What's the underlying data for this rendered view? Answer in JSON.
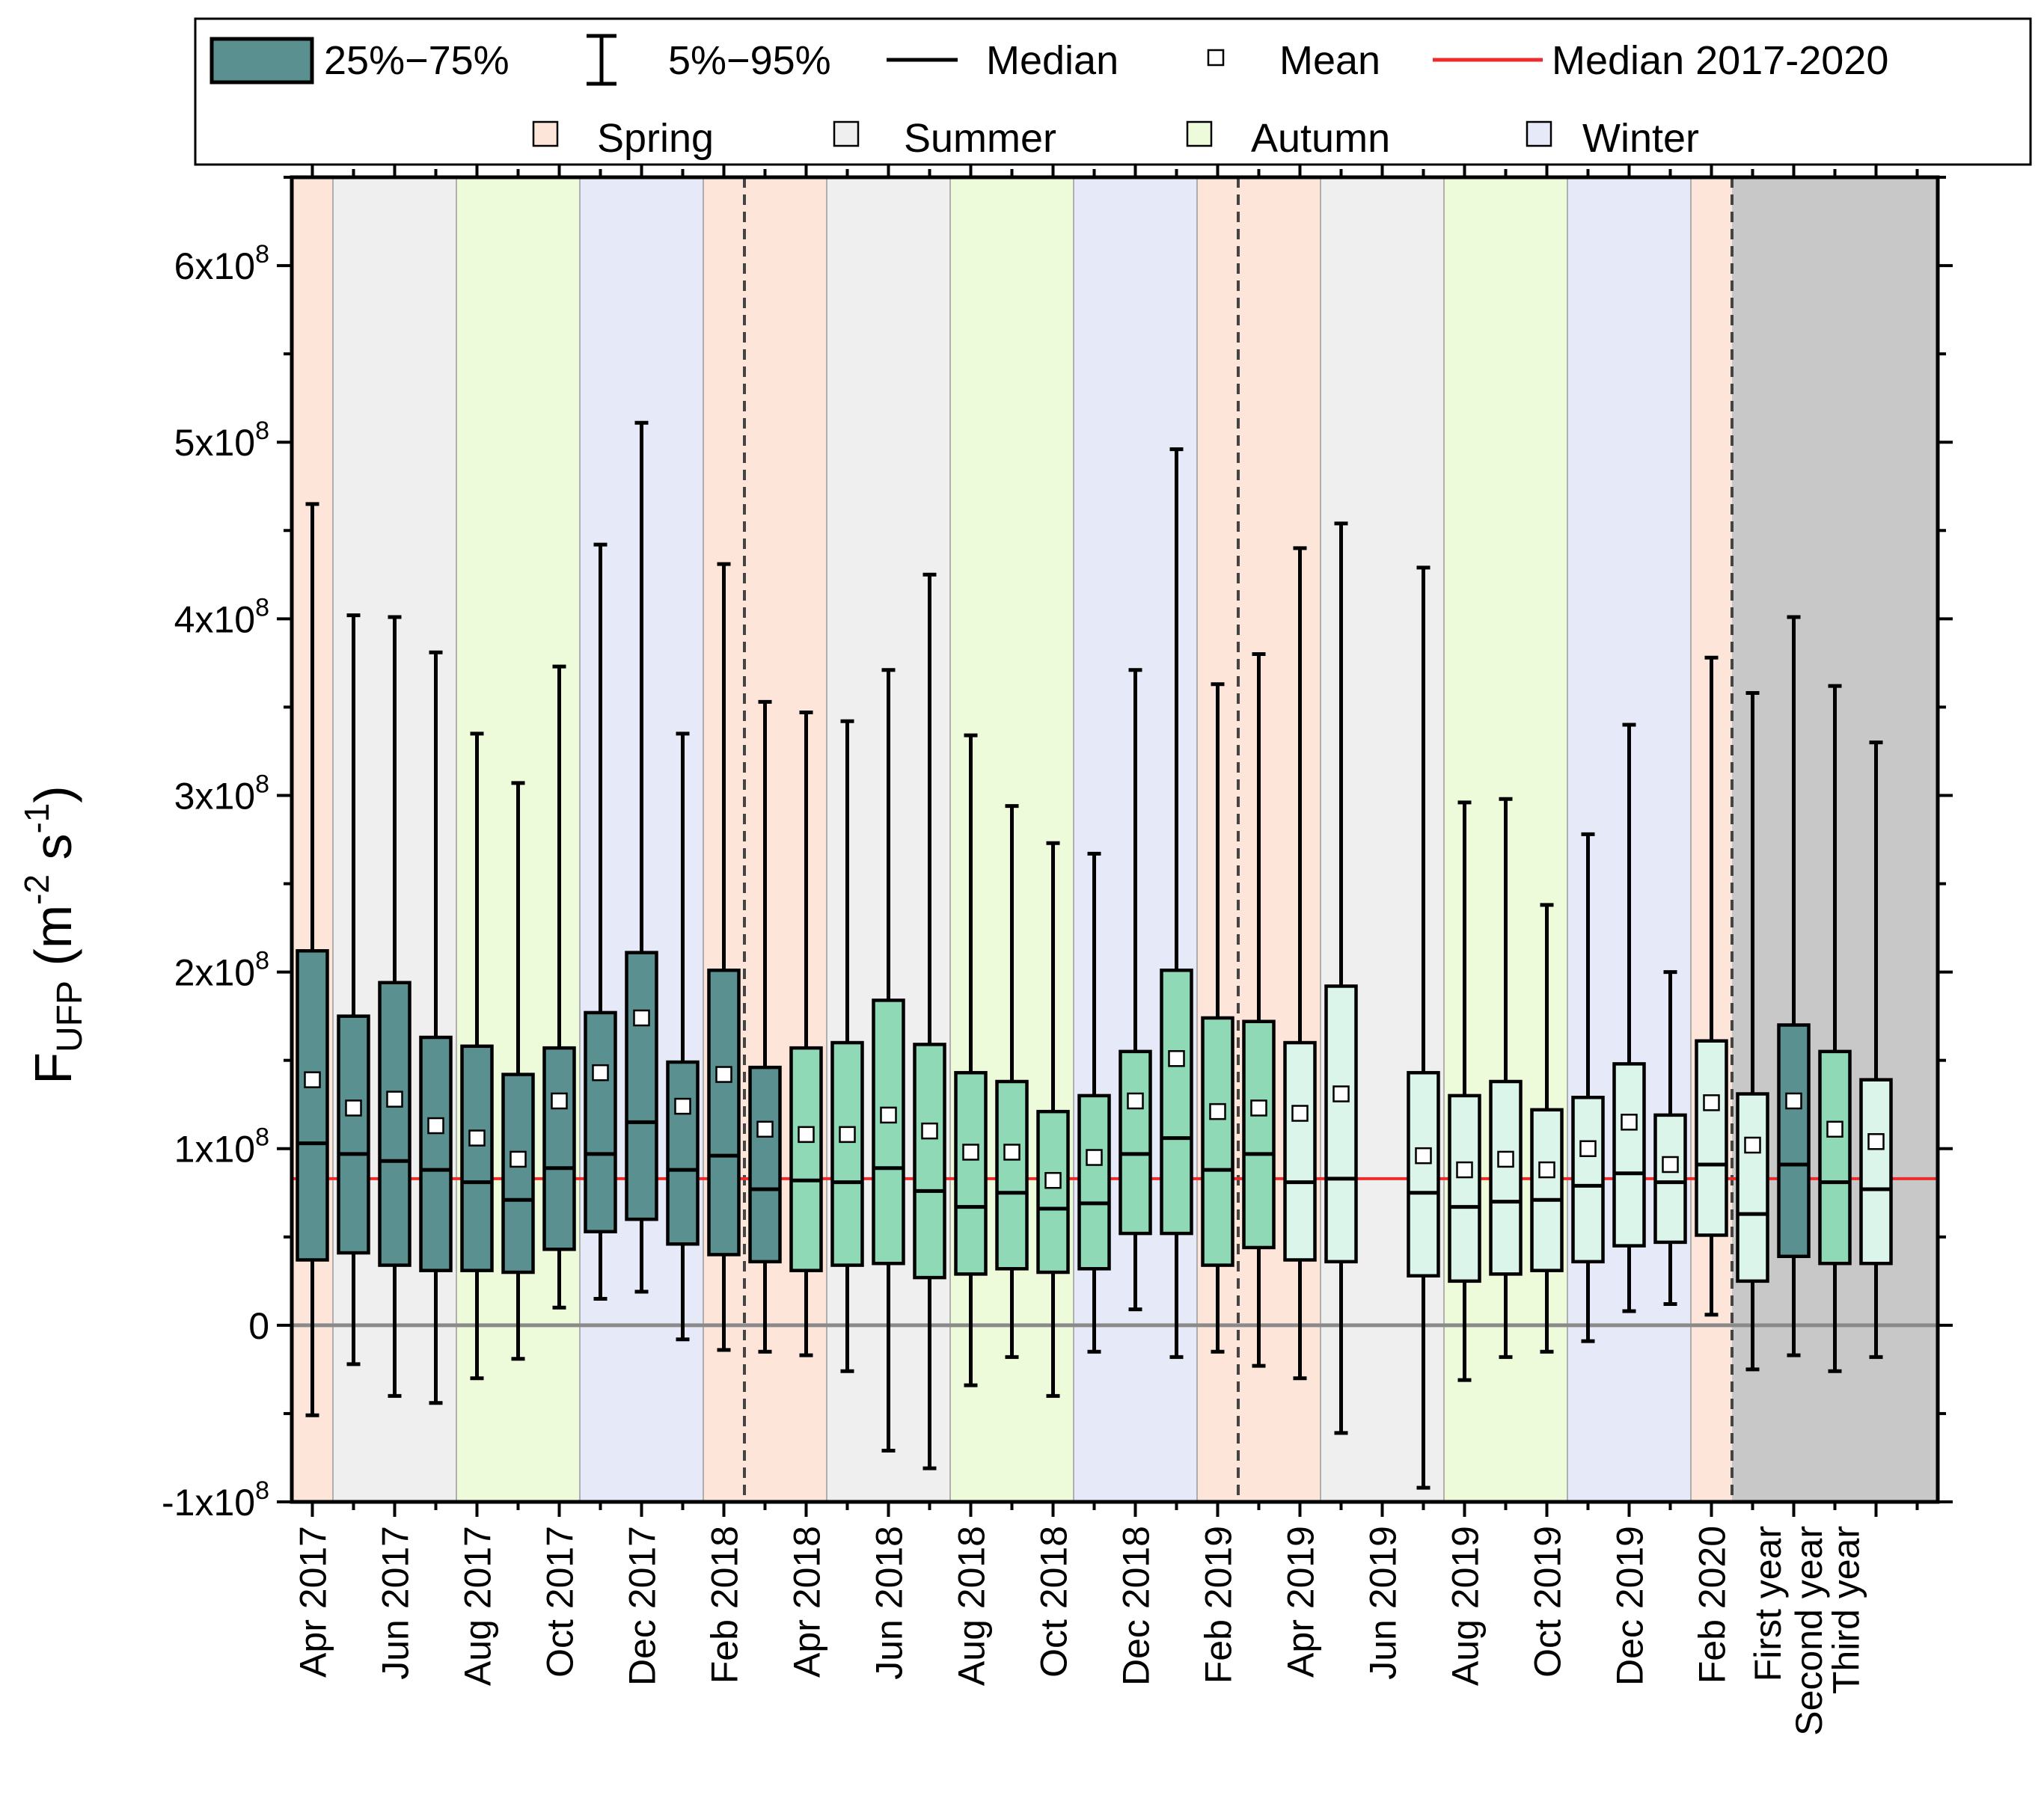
{
  "chart_data": {
    "type": "box",
    "ylabel_main": "F",
    "ylabel_sub": "UFP",
    "ylabel_unit_open": " (m",
    "ylabel_unit_exp1": "-2",
    "ylabel_unit_mid": " s",
    "ylabel_unit_exp2": "-1",
    "ylabel_unit_close": ")",
    "ylim": [
      -100000000,
      650000000
    ],
    "yticks": [
      {
        "value": -100000000,
        "label": "-1x10",
        "exp": "8"
      },
      {
        "value": 0,
        "label": "0",
        "exp": ""
      },
      {
        "value": 100000000,
        "label": "1x10",
        "exp": "8"
      },
      {
        "value": 200000000,
        "label": "2x10",
        "exp": "8"
      },
      {
        "value": 300000000,
        "label": "3x10",
        "exp": "8"
      },
      {
        "value": 400000000,
        "label": "4x10",
        "exp": "8"
      },
      {
        "value": 500000000,
        "label": "5x10",
        "exp": "8"
      },
      {
        "value": 600000000,
        "label": "6x10",
        "exp": "8"
      }
    ],
    "grid": false,
    "legend_position": "top",
    "median_2017_2020": 83000000,
    "colors": {
      "year1": "#5a9090",
      "year2": "#8fd9b6",
      "year3": "#dcf5ea",
      "spring": "#fde6d9",
      "summer": "#efefef",
      "autumn": "#eefbda",
      "winter": "#e6e9f7",
      "summary_bg": "#c8c8c8",
      "median_line": "#ee2b2b",
      "zero_line": "#8a8a8a"
    },
    "legend": {
      "row1": [
        "25%−75%",
        "5%−95%",
        "Median",
        "Mean",
        "Median 2017-2020"
      ],
      "row2": [
        "Spring",
        "Summer",
        "Autumn",
        "Winter"
      ]
    },
    "seasons": [
      {
        "season": "spring",
        "from": 0.5,
        "to": 2.5
      },
      {
        "season": "summer",
        "from": 2.5,
        "to": 5.5
      },
      {
        "season": "autumn",
        "from": 5.5,
        "to": 8.5
      },
      {
        "season": "winter",
        "from": 8.5,
        "to": 11.5
      },
      {
        "season": "spring",
        "from": 11.5,
        "to": 14.5
      },
      {
        "season": "summer",
        "from": 14.5,
        "to": 17.5
      },
      {
        "season": "autumn",
        "from": 17.5,
        "to": 20.5
      },
      {
        "season": "winter",
        "from": 20.5,
        "to": 23.5
      },
      {
        "season": "spring",
        "from": 23.5,
        "to": 26.5
      },
      {
        "season": "summer",
        "from": 26.5,
        "to": 29.5
      },
      {
        "season": "autumn",
        "from": 29.5,
        "to": 32.5
      },
      {
        "season": "winter",
        "from": 32.5,
        "to": 35.5
      },
      {
        "season": "spring",
        "from": 35.5,
        "to": 36.5
      }
    ],
    "summary_region_from": 36.5,
    "year_dividers": [
      12.5,
      24.5,
      36.5
    ],
    "x_tick_labels": [
      {
        "x": 2,
        "label": "Apr 2017"
      },
      {
        "x": 4,
        "label": "Jun 2017"
      },
      {
        "x": 6,
        "label": "Aug 2017"
      },
      {
        "x": 8,
        "label": "Oct 2017"
      },
      {
        "x": 10,
        "label": "Dec 2017"
      },
      {
        "x": 12,
        "label": "Feb 2018"
      },
      {
        "x": 14,
        "label": "Apr 2018"
      },
      {
        "x": 16,
        "label": "Jun 2018"
      },
      {
        "x": 18,
        "label": "Aug 2018"
      },
      {
        "x": 20,
        "label": "Oct 2018"
      },
      {
        "x": 22,
        "label": "Dec 2018"
      },
      {
        "x": 24,
        "label": "Feb 2019"
      },
      {
        "x": 26,
        "label": "Apr 2019"
      },
      {
        "x": 28,
        "label": "Jun 2019"
      },
      {
        "x": 30,
        "label": "Aug 2019"
      },
      {
        "x": 32,
        "label": "Oct 2019"
      },
      {
        "x": 34,
        "label": "Dec 2019"
      },
      {
        "x": 36,
        "label": "Feb 2020"
      },
      {
        "x": 37.35,
        "label": "First year"
      },
      {
        "x": 38.35,
        "label": "Second year"
      },
      {
        "x": 39.25,
        "label": "Third year"
      }
    ],
    "boxes": [
      {
        "x": 2,
        "group": "year1",
        "p5": -51000000,
        "q1": 37000000,
        "median": 103000000,
        "mean": 139000000,
        "q3": 212000000,
        "p95": 465000000
      },
      {
        "x": 3,
        "group": "year1",
        "p5": -22000000,
        "q1": 41000000,
        "median": 97000000,
        "mean": 123000000,
        "q3": 175000000,
        "p95": 402000000
      },
      {
        "x": 4,
        "group": "year1",
        "p5": -40000000,
        "q1": 34000000,
        "median": 93000000,
        "mean": 128000000,
        "q3": 194000000,
        "p95": 401000000
      },
      {
        "x": 5,
        "group": "year1",
        "p5": -44000000,
        "q1": 31000000,
        "median": 88000000,
        "mean": 113000000,
        "q3": 163000000,
        "p95": 381000000
      },
      {
        "x": 6,
        "group": "year1",
        "p5": -30000000,
        "q1": 31000000,
        "median": 81000000,
        "mean": 106000000,
        "q3": 158000000,
        "p95": 335000000
      },
      {
        "x": 7,
        "group": "year1",
        "p5": -19000000,
        "q1": 30000000,
        "median": 71000000,
        "mean": 94000000,
        "q3": 142000000,
        "p95": 307000000
      },
      {
        "x": 8,
        "group": "year1",
        "p5": 10000000,
        "q1": 43000000,
        "median": 89000000,
        "mean": 127000000,
        "q3": 157000000,
        "p95": 373000000
      },
      {
        "x": 9,
        "group": "year1",
        "p5": 15000000,
        "q1": 53000000,
        "median": 97000000,
        "mean": 143000000,
        "q3": 177000000,
        "p95": 442000000
      },
      {
        "x": 10,
        "group": "year1",
        "p5": 19000000,
        "q1": 60000000,
        "median": 115000000,
        "mean": 174000000,
        "q3": 211000000,
        "p95": 511000000
      },
      {
        "x": 11,
        "group": "year1",
        "p5": -8000000,
        "q1": 46000000,
        "median": 88000000,
        "mean": 124000000,
        "q3": 149000000,
        "p95": 335000000
      },
      {
        "x": 12,
        "group": "year1",
        "p5": -14000000,
        "q1": 40000000,
        "median": 96000000,
        "mean": 142000000,
        "q3": 201000000,
        "p95": 431000000
      },
      {
        "x": 13,
        "group": "year1",
        "p5": -15000000,
        "q1": 36000000,
        "median": 77000000,
        "mean": 111000000,
        "q3": 146000000,
        "p95": 353000000
      },
      {
        "x": 14,
        "group": "year2",
        "p5": -17000000,
        "q1": 31000000,
        "median": 82000000,
        "mean": 108000000,
        "q3": 157000000,
        "p95": 347000000
      },
      {
        "x": 15,
        "group": "year2",
        "p5": -26000000,
        "q1": 34000000,
        "median": 81000000,
        "mean": 108000000,
        "q3": 160000000,
        "p95": 342000000
      },
      {
        "x": 16,
        "group": "year2",
        "p5": -71000000,
        "q1": 35000000,
        "median": 89000000,
        "mean": 119000000,
        "q3": 184000000,
        "p95": 371000000
      },
      {
        "x": 17,
        "group": "year2",
        "p5": -81000000,
        "q1": 27000000,
        "median": 76000000,
        "mean": 110000000,
        "q3": 159000000,
        "p95": 425000000
      },
      {
        "x": 18,
        "group": "year2",
        "p5": -34000000,
        "q1": 29000000,
        "median": 67000000,
        "mean": 98000000,
        "q3": 143000000,
        "p95": 334000000
      },
      {
        "x": 19,
        "group": "year2",
        "p5": -18000000,
        "q1": 32000000,
        "median": 75000000,
        "mean": 98000000,
        "q3": 138000000,
        "p95": 294000000
      },
      {
        "x": 20,
        "group": "year2",
        "p5": -40000000,
        "q1": 30000000,
        "median": 66000000,
        "mean": 82000000,
        "q3": 121000000,
        "p95": 273000000
      },
      {
        "x": 21,
        "group": "year2",
        "p5": -15000000,
        "q1": 32000000,
        "median": 69000000,
        "mean": 95000000,
        "q3": 130000000,
        "p95": 267000000
      },
      {
        "x": 22,
        "group": "year2",
        "p5": 9000000,
        "q1": 52000000,
        "median": 97000000,
        "mean": 127000000,
        "q3": 155000000,
        "p95": 371000000
      },
      {
        "x": 23,
        "group": "year2",
        "p5": -18000000,
        "q1": 52000000,
        "median": 106000000,
        "mean": 151000000,
        "q3": 201000000,
        "p95": 496000000
      },
      {
        "x": 24,
        "group": "year2",
        "p5": -15000000,
        "q1": 34000000,
        "median": 88000000,
        "mean": 121000000,
        "q3": 174000000,
        "p95": 363000000
      },
      {
        "x": 25,
        "group": "year2",
        "p5": -23000000,
        "q1": 44000000,
        "median": 97000000,
        "mean": 123000000,
        "q3": 172000000,
        "p95": 380000000
      },
      {
        "x": 26,
        "group": "year3",
        "p5": -30000000,
        "q1": 37000000,
        "median": 81000000,
        "mean": 120000000,
        "q3": 160000000,
        "p95": 440000000
      },
      {
        "x": 27,
        "group": "year3",
        "p5": -61000000,
        "q1": 36000000,
        "median": 83000000,
        "mean": 131000000,
        "q3": 192000000,
        "p95": 454000000
      },
      {
        "x": 29,
        "group": "year3",
        "p5": -92000000,
        "q1": 28000000,
        "median": 75000000,
        "mean": 96000000,
        "q3": 143000000,
        "p95": 429000000
      },
      {
        "x": 30,
        "group": "year3",
        "p5": -31000000,
        "q1": 25000000,
        "median": 67000000,
        "mean": 88000000,
        "q3": 130000000,
        "p95": 296000000
      },
      {
        "x": 31,
        "group": "year3",
        "p5": -18000000,
        "q1": 29000000,
        "median": 70000000,
        "mean": 94000000,
        "q3": 138000000,
        "p95": 298000000
      },
      {
        "x": 32,
        "group": "year3",
        "p5": -15000000,
        "q1": 31000000,
        "median": 71000000,
        "mean": 88000000,
        "q3": 122000000,
        "p95": 238000000
      },
      {
        "x": 33,
        "group": "year3",
        "p5": -9000000,
        "q1": 36000000,
        "median": 79000000,
        "mean": 100000000,
        "q3": 129000000,
        "p95": 278000000
      },
      {
        "x": 34,
        "group": "year3",
        "p5": 8000000,
        "q1": 45000000,
        "median": 86000000,
        "mean": 115000000,
        "q3": 148000000,
        "p95": 340000000
      },
      {
        "x": 35,
        "group": "year3",
        "p5": 12000000,
        "q1": 47000000,
        "median": 81000000,
        "mean": 91000000,
        "q3": 119000000,
        "p95": 200000000
      },
      {
        "x": 36,
        "group": "year3",
        "p5": 6000000,
        "q1": 51000000,
        "median": 91000000,
        "mean": 126000000,
        "q3": 161000000,
        "p95": 378000000
      },
      {
        "x": 37,
        "group": "year3",
        "p5": -25000000,
        "q1": 25000000,
        "median": 63000000,
        "mean": 102000000,
        "q3": 131000000,
        "p95": 358000000
      },
      {
        "x": 38,
        "group": "year1",
        "p5": -17000000,
        "q1": 39000000,
        "median": 91000000,
        "mean": 127000000,
        "q3": 170000000,
        "p95": 401000000
      },
      {
        "x": 39,
        "group": "year2",
        "p5": -26000000,
        "q1": 35000000,
        "median": 81000000,
        "mean": 111000000,
        "q3": 155000000,
        "p95": 362000000
      },
      {
        "x": 40,
        "group": "year3",
        "p5": -18000000,
        "q1": 35000000,
        "median": 77000000,
        "mean": 104000000,
        "q3": 139000000,
        "p95": 330000000
      }
    ]
  }
}
